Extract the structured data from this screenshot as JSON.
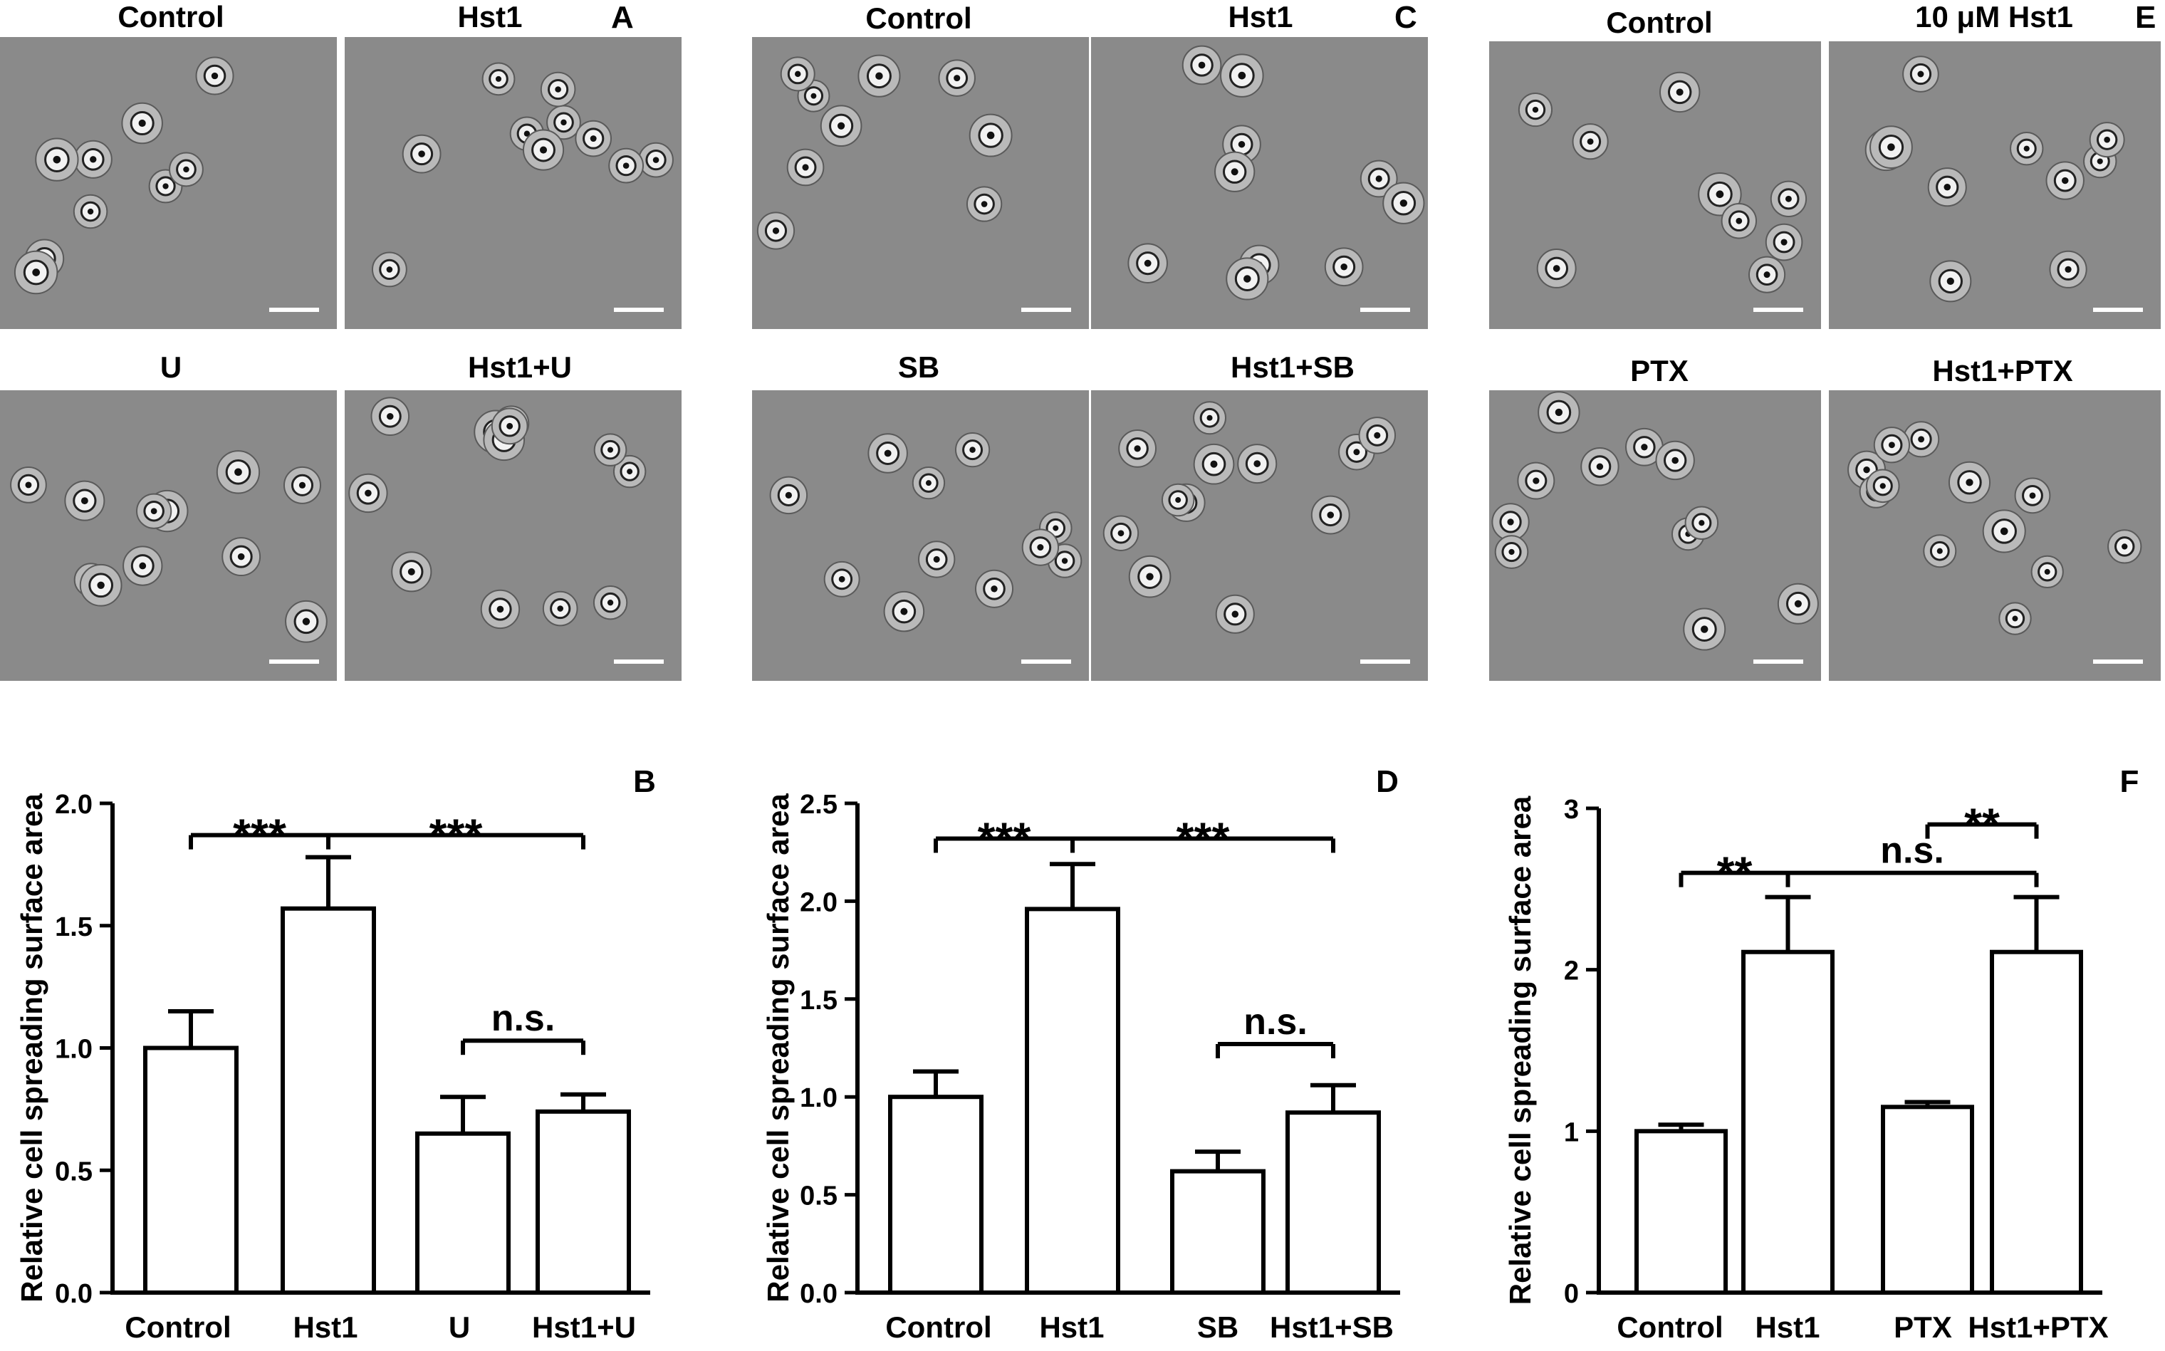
{
  "colors": {
    "background": "#ffffff",
    "bar_fill": "#ffffff",
    "stroke": "#000000",
    "micrograph_bg": "#8a8a8a"
  },
  "micrographs": {
    "A": {
      "letter": "A",
      "labels": [
        "Control",
        "Hst1",
        "U",
        "Hst1+U"
      ]
    },
    "C": {
      "letter": "C",
      "labels": [
        "Control",
        "Hst1",
        "SB",
        "Hst1+SB"
      ]
    },
    "E": {
      "letter": "E",
      "labels": [
        "Control",
        "10 μM Hst1",
        "PTX",
        "Hst1+PTX"
      ]
    }
  },
  "chart_data": [
    {
      "panel": "B",
      "type": "bar",
      "categories": [
        "Control",
        "Hst1",
        "U",
        "Hst1+U"
      ],
      "values": [
        1.0,
        1.57,
        0.65,
        0.74
      ],
      "errors": [
        0.15,
        0.21,
        0.15,
        0.07
      ],
      "ylabel": "Relative cell spreading surface area",
      "xlabel": "",
      "ylim": [
        0,
        2.0
      ],
      "yticks": [
        "0.0",
        "0.5",
        "1.0",
        "1.5",
        "2.0"
      ],
      "grid": false,
      "significance": [
        {
          "label": "***",
          "from": 0,
          "to": 1,
          "level": 1.87
        },
        {
          "label": "***",
          "from": 1,
          "to": 3,
          "level": 1.87
        },
        {
          "label": "n.s.",
          "from": 2,
          "to": 3,
          "level": 1.03
        }
      ]
    },
    {
      "panel": "D",
      "type": "bar",
      "categories": [
        "Control",
        "Hst1",
        "SB",
        "Hst1+SB"
      ],
      "values": [
        1.0,
        1.96,
        0.62,
        0.92
      ],
      "errors": [
        0.13,
        0.23,
        0.1,
        0.14
      ],
      "ylabel": "Relative cell spreading surface area",
      "xlabel": "",
      "ylim": [
        0,
        2.5
      ],
      "yticks": [
        "0.0",
        "0.5",
        "1.0",
        "1.5",
        "2.0",
        "2.5"
      ],
      "grid": false,
      "significance": [
        {
          "label": "***",
          "from": 0,
          "to": 1,
          "level": 2.32
        },
        {
          "label": "***",
          "from": 1,
          "to": 3,
          "level": 2.32
        },
        {
          "label": "n.s.",
          "from": 2,
          "to": 3,
          "level": 1.27
        }
      ]
    },
    {
      "panel": "F",
      "type": "bar",
      "categories": [
        "Control",
        "Hst1",
        "PTX",
        "Hst1+PTX"
      ],
      "values": [
        1.0,
        2.11,
        1.15,
        2.11
      ],
      "errors": [
        0.04,
        0.34,
        0.03,
        0.34
      ],
      "ylabel": "Relative cell spreading surface area",
      "xlabel": "",
      "ylim": [
        0,
        3
      ],
      "yticks": [
        "0",
        "1",
        "2",
        "3"
      ],
      "grid": false,
      "significance": [
        {
          "label": "**",
          "from": 0,
          "to": 1,
          "level": 2.6
        },
        {
          "label": "n.s.",
          "from": 1,
          "to": 3,
          "level": 2.6
        },
        {
          "label": "**",
          "from": 2,
          "to": 3,
          "level": 2.9
        }
      ]
    }
  ]
}
